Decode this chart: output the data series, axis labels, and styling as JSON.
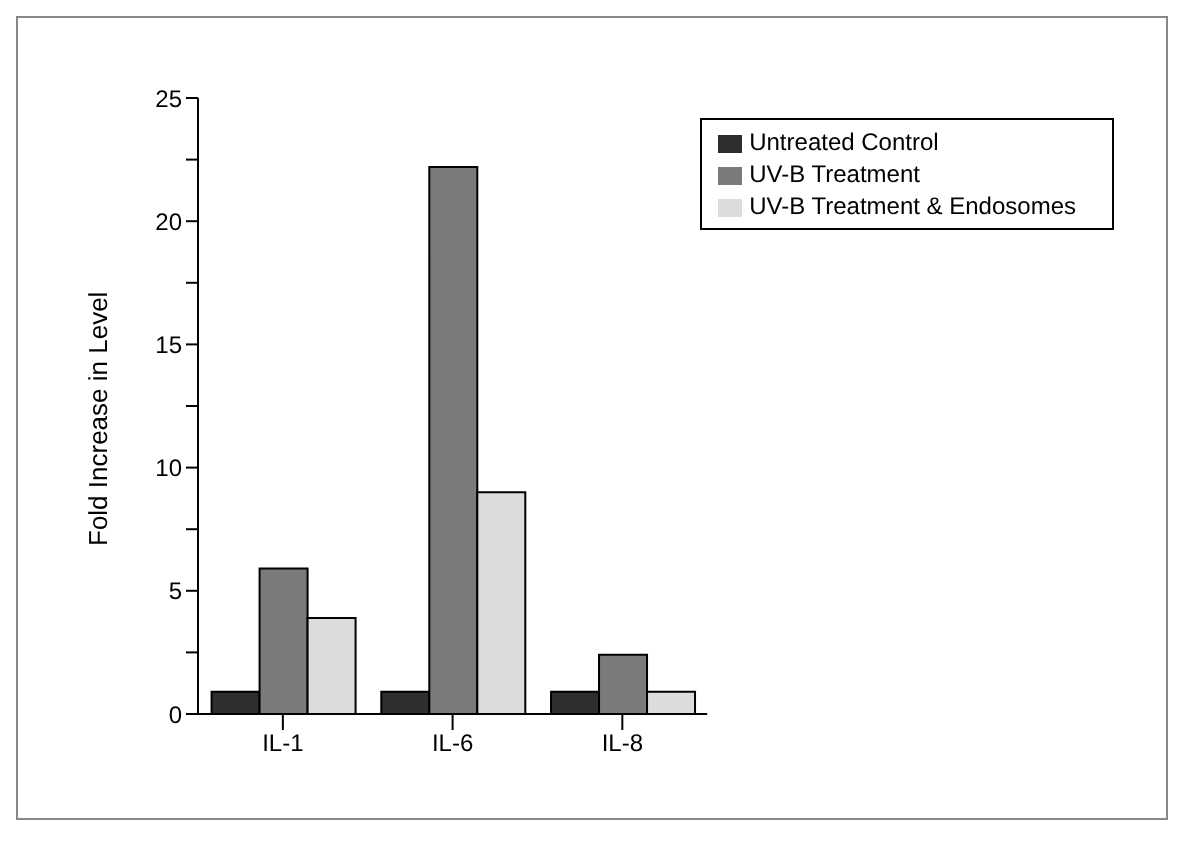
{
  "chart_data": {
    "type": "bar",
    "ylabel": "Fold Increase in Level",
    "categories": [
      "IL-1",
      "IL-6",
      "IL-8"
    ],
    "series": [
      {
        "name": "Untreated Control",
        "color": "#2e2e2e",
        "values": [
          0.9,
          0.9,
          0.9
        ]
      },
      {
        "name": "UV-B Treatment",
        "color": "#7a7a7a",
        "values": [
          5.9,
          22.2,
          2.4
        ]
      },
      {
        "name": "UV-B Treatment & Endosomes",
        "color": "#dcdcdc",
        "values": [
          3.9,
          9.0,
          0.9
        ]
      }
    ],
    "ylim": [
      0,
      25
    ],
    "yticks": [
      0,
      {
        "value": 2.5,
        "label": null
      },
      5,
      {
        "value": 7.5,
        "label": null
      },
      10,
      {
        "value": 12.5,
        "label": null
      },
      15,
      {
        "value": 17.5,
        "label": null
      },
      20,
      {
        "value": 22.5,
        "label": null
      },
      25
    ],
    "grid": false,
    "legend": "top right"
  }
}
